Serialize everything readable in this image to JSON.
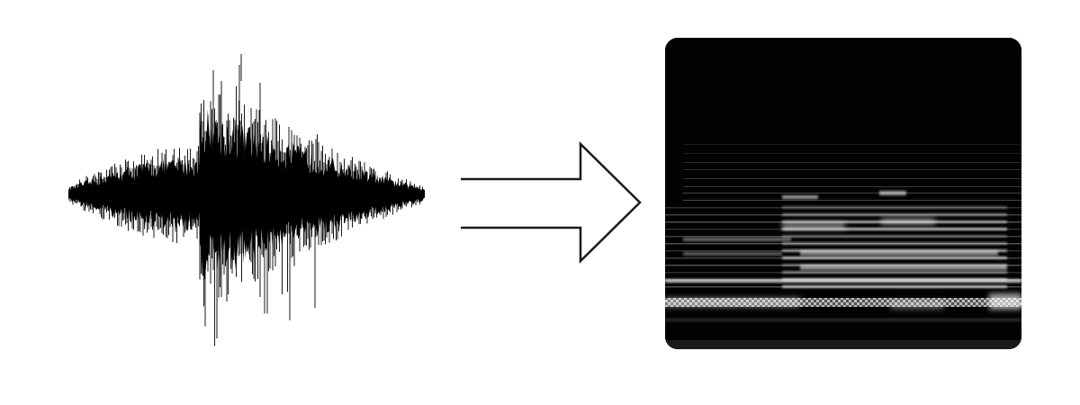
{
  "waveform": {
    "icon": "audio-waveform-icon",
    "color": "#000000"
  },
  "arrow": {
    "icon": "right-arrow-icon",
    "stroke": "#1a1a1a",
    "fill": "#ffffff"
  },
  "spectrogram": {
    "icon": "spectrogram-image",
    "background": "#020202",
    "band_color": "#ffffff"
  }
}
